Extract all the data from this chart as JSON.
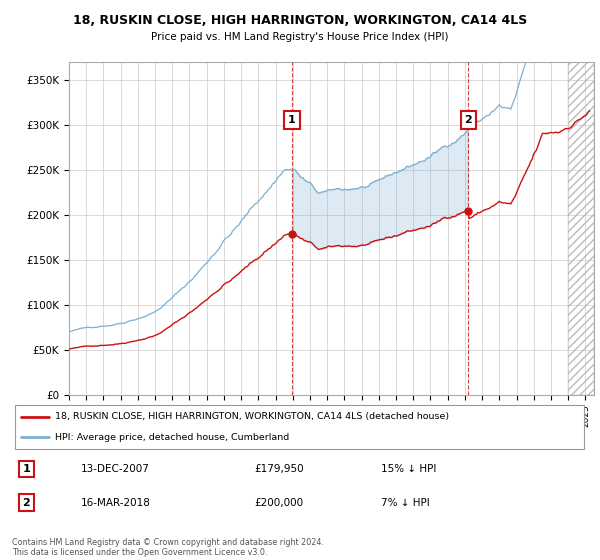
{
  "title": "18, RUSKIN CLOSE, HIGH HARRINGTON, WORKINGTON, CA14 4LS",
  "subtitle": "Price paid vs. HM Land Registry's House Price Index (HPI)",
  "ylabel_ticks": [
    "£0",
    "£50K",
    "£100K",
    "£150K",
    "£200K",
    "£250K",
    "£300K",
    "£350K"
  ],
  "ytick_values": [
    0,
    50000,
    100000,
    150000,
    200000,
    250000,
    300000,
    350000
  ],
  "ylim": [
    0,
    370000
  ],
  "xlim_start": 1995.0,
  "xlim_end": 2025.5,
  "sale1_date": 2007.958,
  "sale1_price": 179950,
  "sale2_date": 2018.208,
  "sale2_price": 200000,
  "legend_line1": "18, RUSKIN CLOSE, HIGH HARRINGTON, WORKINGTON, CA14 4LS (detached house)",
  "legend_line2": "HPI: Average price, detached house, Cumberland",
  "hpi_color": "#7bafd4",
  "hpi_fill_color": "#ddeeff",
  "price_color": "#cc1111",
  "dashed_color": "#cc1111",
  "background_color": "#ffffff",
  "grid_color": "#cccccc"
}
